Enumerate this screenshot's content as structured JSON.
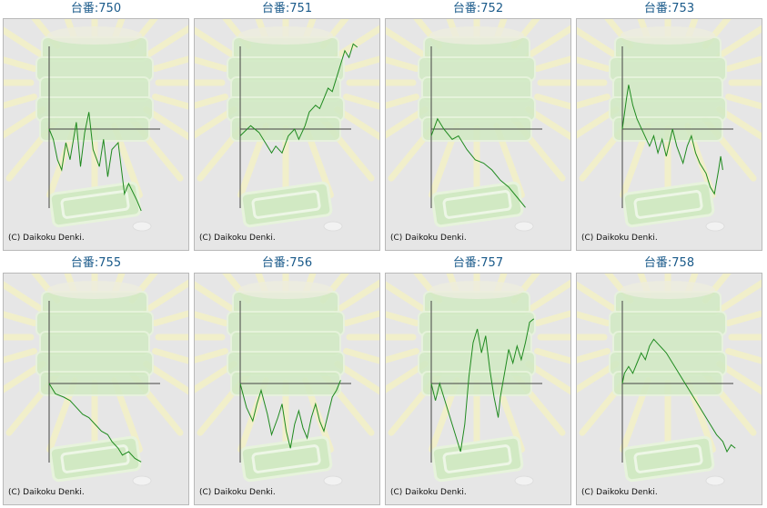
{
  "page": {
    "copyright": "(C) Daikoku Denki.",
    "colors": {
      "link": "#1a5a8a",
      "panel_bg": "#e6e6e6",
      "panel_border": "#b9b9b9",
      "axis": "#444444",
      "graph_line": "#1f8a1f",
      "bg_art_green": "#cfeac0",
      "bg_art_rays": "#f3f0c8"
    },
    "background_art": "pachinko-machine-watermark"
  },
  "machines": [
    {
      "label": "台番:750",
      "id": "750",
      "profile": [
        [
          0,
          0
        ],
        [
          0.02,
          -0.15
        ],
        [
          0.04,
          -0.45
        ],
        [
          0.06,
          -0.6
        ],
        [
          0.08,
          -0.2
        ],
        [
          0.1,
          -0.45
        ],
        [
          0.13,
          0.1
        ],
        [
          0.15,
          -0.55
        ],
        [
          0.17,
          -0.05
        ],
        [
          0.19,
          0.25
        ],
        [
          0.21,
          -0.3
        ],
        [
          0.24,
          -0.55
        ],
        [
          0.26,
          -0.15
        ],
        [
          0.28,
          -0.7
        ],
        [
          0.3,
          -0.3
        ],
        [
          0.33,
          -0.2
        ],
        [
          0.36,
          -0.95
        ],
        [
          0.38,
          -0.8
        ],
        [
          0.42,
          -1.05
        ],
        [
          0.44,
          -1.2
        ]
      ]
    },
    {
      "label": "台番:751",
      "id": "751",
      "profile": [
        [
          0,
          -0.1
        ],
        [
          0.05,
          0.05
        ],
        [
          0.09,
          -0.05
        ],
        [
          0.12,
          -0.2
        ],
        [
          0.15,
          -0.35
        ],
        [
          0.17,
          -0.25
        ],
        [
          0.2,
          -0.35
        ],
        [
          0.23,
          -0.1
        ],
        [
          0.26,
          0.0
        ],
        [
          0.28,
          -0.15
        ],
        [
          0.31,
          0.05
        ],
        [
          0.33,
          0.25
        ],
        [
          0.36,
          0.35
        ],
        [
          0.38,
          0.3
        ],
        [
          0.4,
          0.45
        ],
        [
          0.42,
          0.6
        ],
        [
          0.44,
          0.55
        ],
        [
          0.46,
          0.75
        ],
        [
          0.48,
          0.95
        ],
        [
          0.5,
          1.15
        ],
        [
          0.52,
          1.05
        ],
        [
          0.54,
          1.25
        ],
        [
          0.56,
          1.2
        ]
      ]
    },
    {
      "label": "台番:752",
      "id": "752",
      "profile": [
        [
          0,
          -0.1
        ],
        [
          0.03,
          0.15
        ],
        [
          0.06,
          0.0
        ],
        [
          0.1,
          -0.15
        ],
        [
          0.13,
          -0.1
        ],
        [
          0.17,
          -0.3
        ],
        [
          0.21,
          -0.45
        ],
        [
          0.25,
          -0.5
        ],
        [
          0.29,
          -0.6
        ],
        [
          0.33,
          -0.75
        ],
        [
          0.37,
          -0.85
        ],
        [
          0.41,
          -1.0
        ],
        [
          0.45,
          -1.15
        ]
      ]
    },
    {
      "label": "台番:753",
      "id": "753",
      "profile": [
        [
          0,
          0
        ],
        [
          0.02,
          0.45
        ],
        [
          0.03,
          0.65
        ],
        [
          0.05,
          0.35
        ],
        [
          0.07,
          0.15
        ],
        [
          0.1,
          -0.05
        ],
        [
          0.13,
          -0.25
        ],
        [
          0.15,
          -0.1
        ],
        [
          0.17,
          -0.35
        ],
        [
          0.19,
          -0.15
        ],
        [
          0.21,
          -0.4
        ],
        [
          0.24,
          0.0
        ],
        [
          0.26,
          -0.25
        ],
        [
          0.29,
          -0.5
        ],
        [
          0.31,
          -0.25
        ],
        [
          0.33,
          -0.1
        ],
        [
          0.35,
          -0.35
        ],
        [
          0.37,
          -0.5
        ],
        [
          0.4,
          -0.65
        ],
        [
          0.42,
          -0.85
        ],
        [
          0.44,
          -0.95
        ],
        [
          0.46,
          -0.6
        ],
        [
          0.47,
          -0.4
        ],
        [
          0.48,
          -0.6
        ]
      ]
    },
    {
      "label": "台番:755",
      "id": "755",
      "profile": [
        [
          0,
          0
        ],
        [
          0.03,
          -0.15
        ],
        [
          0.07,
          -0.2
        ],
        [
          0.1,
          -0.25
        ],
        [
          0.13,
          -0.35
        ],
        [
          0.16,
          -0.45
        ],
        [
          0.19,
          -0.5
        ],
        [
          0.22,
          -0.6
        ],
        [
          0.25,
          -0.7
        ],
        [
          0.28,
          -0.75
        ],
        [
          0.3,
          -0.85
        ],
        [
          0.33,
          -0.95
        ],
        [
          0.35,
          -1.05
        ],
        [
          0.38,
          -1.0
        ],
        [
          0.41,
          -1.1
        ],
        [
          0.44,
          -1.15
        ]
      ]
    },
    {
      "label": "台番:756",
      "id": "756",
      "profile": [
        [
          0,
          0
        ],
        [
          0.03,
          -0.35
        ],
        [
          0.06,
          -0.55
        ],
        [
          0.08,
          -0.3
        ],
        [
          0.1,
          -0.1
        ],
        [
          0.13,
          -0.45
        ],
        [
          0.15,
          -0.75
        ],
        [
          0.18,
          -0.5
        ],
        [
          0.2,
          -0.3
        ],
        [
          0.22,
          -0.7
        ],
        [
          0.24,
          -0.95
        ],
        [
          0.26,
          -0.6
        ],
        [
          0.28,
          -0.4
        ],
        [
          0.3,
          -0.65
        ],
        [
          0.32,
          -0.8
        ],
        [
          0.34,
          -0.5
        ],
        [
          0.36,
          -0.3
        ],
        [
          0.38,
          -0.55
        ],
        [
          0.4,
          -0.7
        ],
        [
          0.42,
          -0.45
        ],
        [
          0.44,
          -0.2
        ],
        [
          0.46,
          -0.1
        ],
        [
          0.48,
          0.05
        ]
      ]
    },
    {
      "label": "台番:757",
      "id": "757",
      "profile": [
        [
          0,
          0
        ],
        [
          0.02,
          -0.25
        ],
        [
          0.04,
          0.0
        ],
        [
          0.06,
          -0.2
        ],
        [
          0.09,
          -0.5
        ],
        [
          0.12,
          -0.8
        ],
        [
          0.14,
          -1.0
        ],
        [
          0.16,
          -0.6
        ],
        [
          0.18,
          0.1
        ],
        [
          0.2,
          0.6
        ],
        [
          0.22,
          0.8
        ],
        [
          0.24,
          0.45
        ],
        [
          0.26,
          0.7
        ],
        [
          0.28,
          0.2
        ],
        [
          0.3,
          -0.2
        ],
        [
          0.32,
          -0.5
        ],
        [
          0.33,
          -0.2
        ],
        [
          0.35,
          0.15
        ],
        [
          0.37,
          0.5
        ],
        [
          0.39,
          0.3
        ],
        [
          0.41,
          0.55
        ],
        [
          0.43,
          0.35
        ],
        [
          0.45,
          0.6
        ],
        [
          0.47,
          0.9
        ],
        [
          0.49,
          0.95
        ]
      ]
    },
    {
      "label": "台番:758",
      "id": "758",
      "profile": [
        [
          0,
          0
        ],
        [
          0.01,
          0.15
        ],
        [
          0.03,
          0.25
        ],
        [
          0.05,
          0.15
        ],
        [
          0.07,
          0.3
        ],
        [
          0.09,
          0.45
        ],
        [
          0.11,
          0.35
        ],
        [
          0.13,
          0.55
        ],
        [
          0.15,
          0.65
        ],
        [
          0.18,
          0.55
        ],
        [
          0.21,
          0.45
        ],
        [
          0.24,
          0.3
        ],
        [
          0.27,
          0.15
        ],
        [
          0.3,
          0.0
        ],
        [
          0.33,
          -0.15
        ],
        [
          0.36,
          -0.3
        ],
        [
          0.39,
          -0.45
        ],
        [
          0.42,
          -0.6
        ],
        [
          0.45,
          -0.75
        ],
        [
          0.48,
          -0.85
        ],
        [
          0.5,
          -1.0
        ],
        [
          0.52,
          -0.9
        ],
        [
          0.54,
          -0.95
        ]
      ]
    }
  ]
}
